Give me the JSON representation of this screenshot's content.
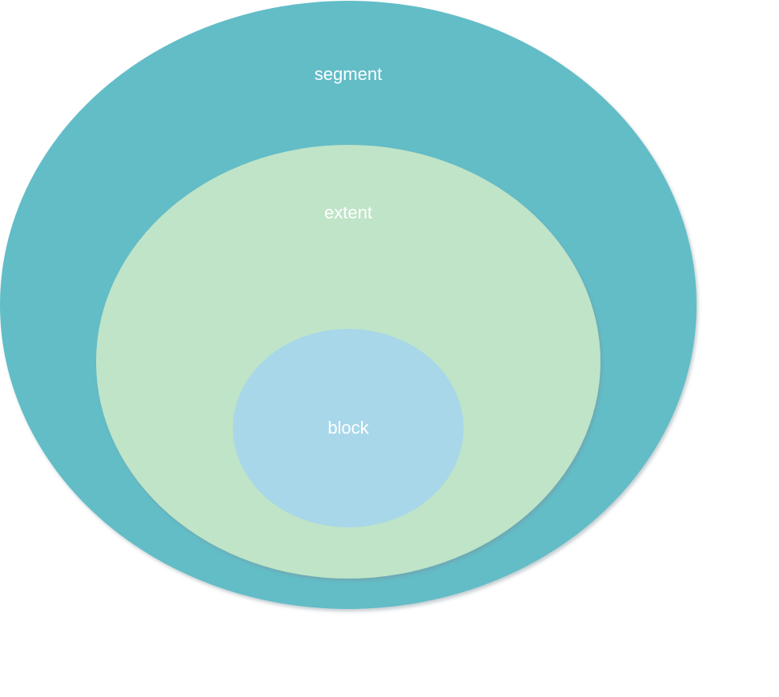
{
  "diagram": {
    "type": "nested-ellipses",
    "rings": [
      {
        "label": "segment",
        "color": "#62bdc7"
      },
      {
        "label": "extent",
        "color": "#bfe4c7"
      },
      {
        "label": "block",
        "color": "#a8d7e9"
      }
    ],
    "label_color": "#ffffff",
    "background": "#ffffff"
  }
}
